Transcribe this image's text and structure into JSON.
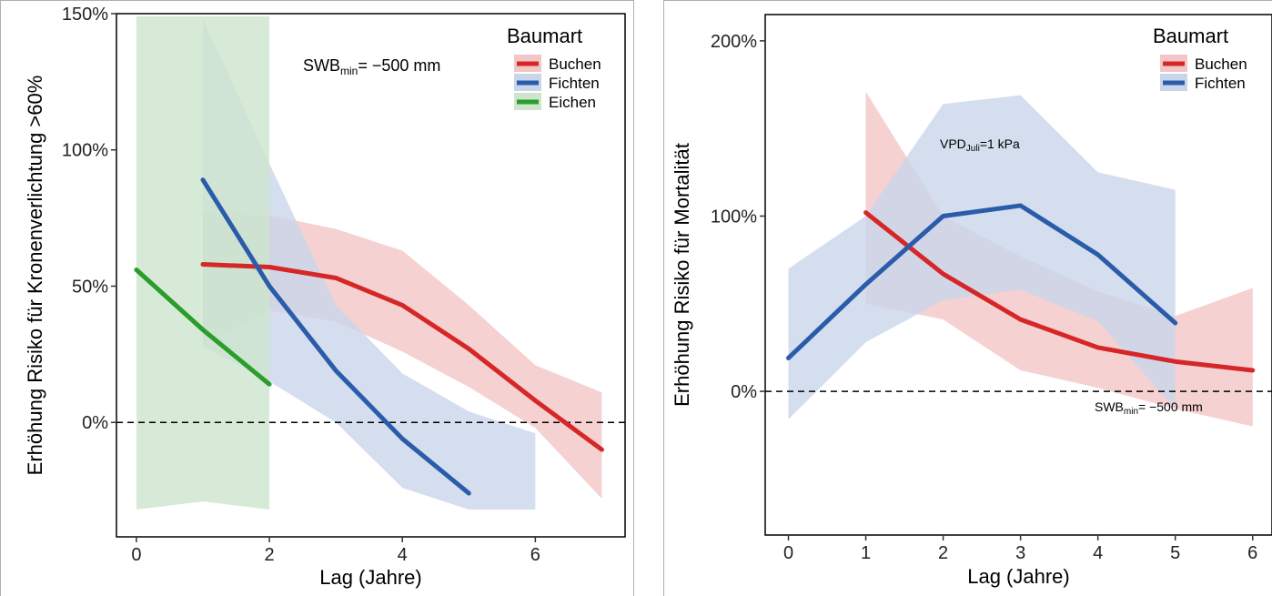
{
  "chart_data": [
    {
      "type": "line",
      "xlabel": "Lag (Jahre)",
      "ylabel": "Erhöhung Risiko für Kronenverlichtung >60%",
      "xlim": [
        -0.3,
        7.35
      ],
      "ylim": [
        -42,
        150
      ],
      "xticks": [
        0,
        2,
        4,
        6
      ],
      "xtick_labels": [
        "0",
        "2",
        "4",
        "6"
      ],
      "yticks": [
        0,
        50,
        100,
        150
      ],
      "ytick_labels": [
        "0%",
        "50%",
        "100%",
        "150%"
      ],
      "reference_line": 0,
      "legend_title": "Baumart",
      "legend_position": "top-right",
      "annotation": {
        "base": "SWB",
        "sub": "min",
        "rest": "= −500 mm"
      },
      "series": [
        {
          "name": "Buchen",
          "color": "#d62728",
          "fill": "#f2c6c6",
          "x": [
            1,
            2,
            3,
            4,
            5,
            6,
            7
          ],
          "y": [
            58,
            57,
            53,
            43,
            27,
            8,
            -10
          ],
          "lower": [
            29,
            41,
            37,
            26,
            13,
            -2,
            -28
          ],
          "upper": [
            77,
            76,
            71,
            63,
            43,
            21,
            11
          ]
        },
        {
          "name": "Fichten",
          "color": "#2a5caa",
          "fill": "#c9d6ea",
          "x": [
            1,
            2,
            3,
            4,
            5,
            6
          ],
          "y": [
            89,
            50,
            19,
            -6,
            -26,
            null
          ],
          "lower": [
            28,
            15,
            0,
            -24,
            -32,
            -32
          ],
          "upper": [
            148,
            95,
            43,
            18,
            4,
            -4
          ]
        },
        {
          "name": "Eichen",
          "color": "#2a9d2a",
          "fill": "#cde5cd",
          "x": [
            0,
            1,
            2
          ],
          "y": [
            56,
            34,
            14
          ],
          "lower": [
            -32,
            -29,
            -32
          ],
          "upper": [
            149,
            149,
            149
          ]
        }
      ]
    },
    {
      "type": "line",
      "xlabel": "Lag (Jahre)",
      "ylabel": "Erhöhung Risiko für Mortalität",
      "xlim": [
        -0.3,
        6.25
      ],
      "ylim": [
        -82,
        215
      ],
      "xticks": [
        0,
        1,
        2,
        3,
        4,
        5,
        6
      ],
      "xtick_labels": [
        "0",
        "1",
        "2",
        "3",
        "4",
        "5",
        "6"
      ],
      "yticks": [
        0,
        100,
        200
      ],
      "ytick_labels": [
        "0%",
        "100%",
        "200%"
      ],
      "reference_line": 0,
      "legend_title": "Baumart",
      "legend_position": "top-right",
      "annotations": [
        {
          "base": "VPD",
          "sub": "Juli",
          "rest": "=1 kPa"
        },
        {
          "base": "SWB",
          "sub": "min",
          "rest": "= −500 mm"
        }
      ],
      "series": [
        {
          "name": "Buchen",
          "color": "#d62728",
          "fill": "#f2c6c6",
          "x": [
            1,
            2,
            3,
            4,
            5,
            6
          ],
          "y": [
            102,
            67,
            41,
            25,
            17,
            12
          ],
          "lower": [
            50,
            41,
            12,
            2,
            -10,
            -20
          ],
          "upper": [
            171,
            100,
            77,
            57,
            43,
            59
          ]
        },
        {
          "name": "Fichten",
          "color": "#2a5caa",
          "fill": "#c9d6ea",
          "x": [
            0,
            1,
            2,
            3,
            4,
            5
          ],
          "y": [
            19,
            61,
            100,
            106,
            78,
            39
          ],
          "lower": [
            -16,
            28,
            52,
            58,
            40,
            -10
          ],
          "upper": [
            70,
            100,
            164,
            169,
            125,
            115
          ]
        }
      ]
    }
  ]
}
